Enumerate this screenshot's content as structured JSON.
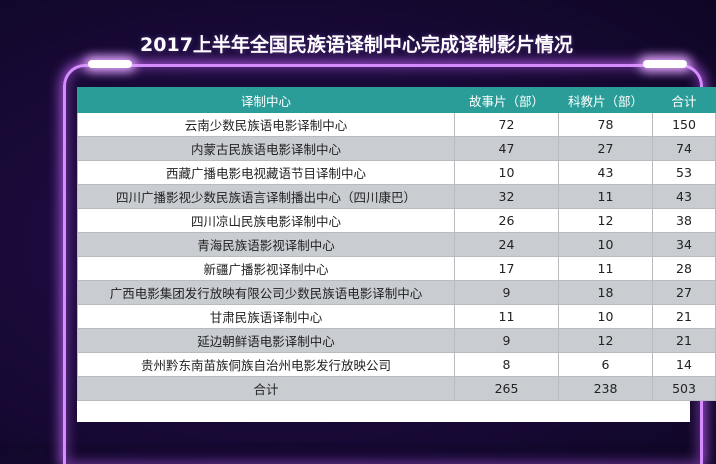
{
  "title": "2017上半年全国民族语译制中心完成译制影片情况",
  "table": {
    "headers": [
      "译制中心",
      "故事片（部）",
      "科教片（部）",
      "合计"
    ],
    "rows": [
      [
        "云南少数民族语电影译制中心",
        "72",
        "78",
        "150"
      ],
      [
        "内蒙古民族语电影译制中心",
        "47",
        "27",
        "74"
      ],
      [
        "西藏广播电影电视藏语节目译制中心",
        "10",
        "43",
        "53"
      ],
      [
        "四川广播影视少数民族语言译制播出中心（四川康巴）",
        "32",
        "11",
        "43"
      ],
      [
        "四川凉山民族电影译制中心",
        "26",
        "12",
        "38"
      ],
      [
        "青海民族语影视译制中心",
        "24",
        "10",
        "34"
      ],
      [
        "新疆广播影视译制中心",
        "17",
        "11",
        "28"
      ],
      [
        "广西电影集团发行放映有限公司少数民族语电影译制中心",
        "9",
        "18",
        "27"
      ],
      [
        "甘肃民族语译制中心",
        "11",
        "10",
        "21"
      ],
      [
        "延边朝鲜语电影译制中心",
        "9",
        "12",
        "21"
      ],
      [
        "贵州黔东南苗族侗族自治州电影发行放映公司",
        "8",
        "6",
        "14"
      ]
    ],
    "total": [
      "合计",
      "265",
      "238",
      "503"
    ]
  },
  "colors": {
    "header_bg": "#2a9d98",
    "row_alt_bg": "#c9cdd2",
    "frame_glow": "#d58cff",
    "background": "#1a0a3a"
  }
}
